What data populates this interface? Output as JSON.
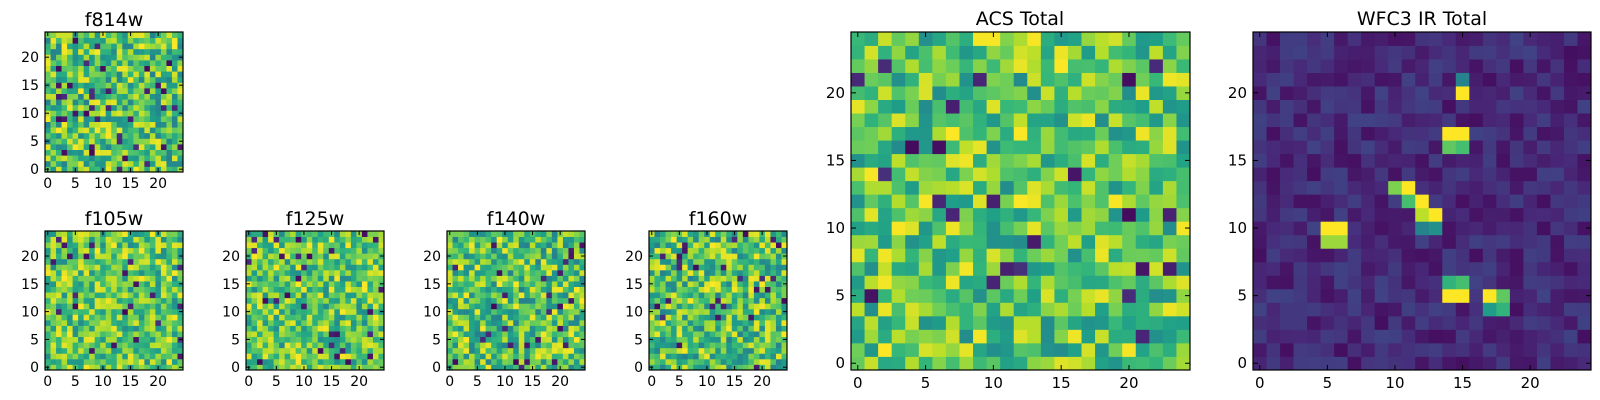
{
  "figure": {
    "description_free": true
  },
  "palette": {
    "viridis": [
      "#440154",
      "#482878",
      "#3e4989",
      "#31688e",
      "#26828e",
      "#1f9e89",
      "#35b779",
      "#6ece58",
      "#b5de2b",
      "#fde725"
    ],
    "frame": "#000000"
  },
  "chart_data": [
    {
      "id": "f814w",
      "type": "heatmap",
      "title": "f814w",
      "grid_size": 25,
      "xlim": [
        -0.5,
        24.5
      ],
      "ylim": [
        -0.5,
        24.5
      ],
      "xticks": [
        0,
        5,
        10,
        15,
        20
      ],
      "yticks": [
        0,
        5,
        10,
        15,
        20
      ],
      "value_range": [
        0,
        1
      ],
      "seed": 814,
      "base": 0.72,
      "spread": 0.28,
      "dark_fraction": 0.05,
      "hotspots": []
    },
    {
      "id": "f105w",
      "type": "heatmap",
      "title": "f105w",
      "grid_size": 25,
      "xlim": [
        -0.5,
        24.5
      ],
      "ylim": [
        -0.5,
        24.5
      ],
      "xticks": [
        0,
        5,
        10,
        15,
        20
      ],
      "yticks": [
        0,
        5,
        10,
        15,
        20
      ],
      "value_range": [
        0,
        1
      ],
      "seed": 105,
      "base": 0.74,
      "spread": 0.26,
      "dark_fraction": 0.03,
      "hotspots": []
    },
    {
      "id": "f125w",
      "type": "heatmap",
      "title": "f125w",
      "grid_size": 25,
      "xlim": [
        -0.5,
        24.5
      ],
      "ylim": [
        -0.5,
        24.5
      ],
      "xticks": [
        0,
        5,
        10,
        15,
        20
      ],
      "yticks": [
        0,
        5,
        10,
        15,
        20
      ],
      "value_range": [
        0,
        1
      ],
      "seed": 125,
      "base": 0.74,
      "spread": 0.26,
      "dark_fraction": 0.03,
      "hotspots": []
    },
    {
      "id": "f140w",
      "type": "heatmap",
      "title": "f140w",
      "grid_size": 25,
      "xlim": [
        -0.5,
        24.5
      ],
      "ylim": [
        -0.5,
        24.5
      ],
      "xticks": [
        0,
        5,
        10,
        15,
        20
      ],
      "yticks": [
        0,
        5,
        10,
        15,
        20
      ],
      "value_range": [
        0,
        1
      ],
      "seed": 140,
      "base": 0.72,
      "spread": 0.28,
      "dark_fraction": 0.04,
      "hotspots": []
    },
    {
      "id": "f160w",
      "type": "heatmap",
      "title": "f160w",
      "grid_size": 25,
      "xlim": [
        -0.5,
        24.5
      ],
      "ylim": [
        -0.5,
        24.5
      ],
      "xticks": [
        0,
        5,
        10,
        15,
        20
      ],
      "yticks": [
        0,
        5,
        10,
        15,
        20
      ],
      "value_range": [
        0,
        1
      ],
      "seed": 160,
      "base": 0.72,
      "spread": 0.28,
      "dark_fraction": 0.04,
      "hotspots": []
    },
    {
      "id": "acs_total",
      "type": "heatmap",
      "title": "ACS Total",
      "grid_size": 25,
      "xlim": [
        -0.5,
        24.5
      ],
      "ylim": [
        -0.5,
        24.5
      ],
      "xticks": [
        0,
        5,
        10,
        15,
        20
      ],
      "yticks": [
        0,
        5,
        10,
        15,
        20
      ],
      "value_range": [
        0,
        1
      ],
      "seed": 777,
      "base": 0.74,
      "spread": 0.26,
      "dark_fraction": 0.04,
      "hotspots": []
    },
    {
      "id": "wfc3_ir_total",
      "type": "heatmap",
      "title": "WFC3 IR Total",
      "grid_size": 25,
      "xlim": [
        -0.5,
        24.5
      ],
      "ylim": [
        -0.5,
        24.5
      ],
      "xticks": [
        0,
        5,
        10,
        15,
        20
      ],
      "yticks": [
        0,
        5,
        10,
        15,
        20
      ],
      "value_range": [
        0,
        1
      ],
      "seed": 333,
      "base": 0.12,
      "spread": 0.08,
      "dark_fraction": 0.0,
      "hotspots": [
        {
          "x": 15,
          "y": 20,
          "v": 1.0
        },
        {
          "x": 15,
          "y": 21,
          "v": 0.45
        },
        {
          "x": 14,
          "y": 17,
          "v": 1.0
        },
        {
          "x": 15,
          "y": 17,
          "v": 1.0
        },
        {
          "x": 14,
          "y": 16,
          "v": 0.75
        },
        {
          "x": 15,
          "y": 16,
          "v": 0.7
        },
        {
          "x": 10,
          "y": 13,
          "v": 0.8
        },
        {
          "x": 11,
          "y": 13,
          "v": 1.0
        },
        {
          "x": 11,
          "y": 12,
          "v": 0.7
        },
        {
          "x": 12,
          "y": 12,
          "v": 1.0
        },
        {
          "x": 12,
          "y": 11,
          "v": 0.9
        },
        {
          "x": 13,
          "y": 11,
          "v": 1.0
        },
        {
          "x": 13,
          "y": 10,
          "v": 0.5
        },
        {
          "x": 12,
          "y": 10,
          "v": 0.45
        },
        {
          "x": 5,
          "y": 10,
          "v": 1.0
        },
        {
          "x": 6,
          "y": 10,
          "v": 1.0
        },
        {
          "x": 5,
          "y": 9,
          "v": 0.85
        },
        {
          "x": 6,
          "y": 9,
          "v": 0.85
        },
        {
          "x": 14,
          "y": 5,
          "v": 1.0
        },
        {
          "x": 15,
          "y": 5,
          "v": 1.0
        },
        {
          "x": 14,
          "y": 6,
          "v": 0.65
        },
        {
          "x": 15,
          "y": 6,
          "v": 0.7
        },
        {
          "x": 17,
          "y": 5,
          "v": 1.0
        },
        {
          "x": 18,
          "y": 5,
          "v": 0.75
        },
        {
          "x": 17,
          "y": 4,
          "v": 0.55
        },
        {
          "x": 18,
          "y": 4,
          "v": 0.65
        }
      ]
    }
  ]
}
